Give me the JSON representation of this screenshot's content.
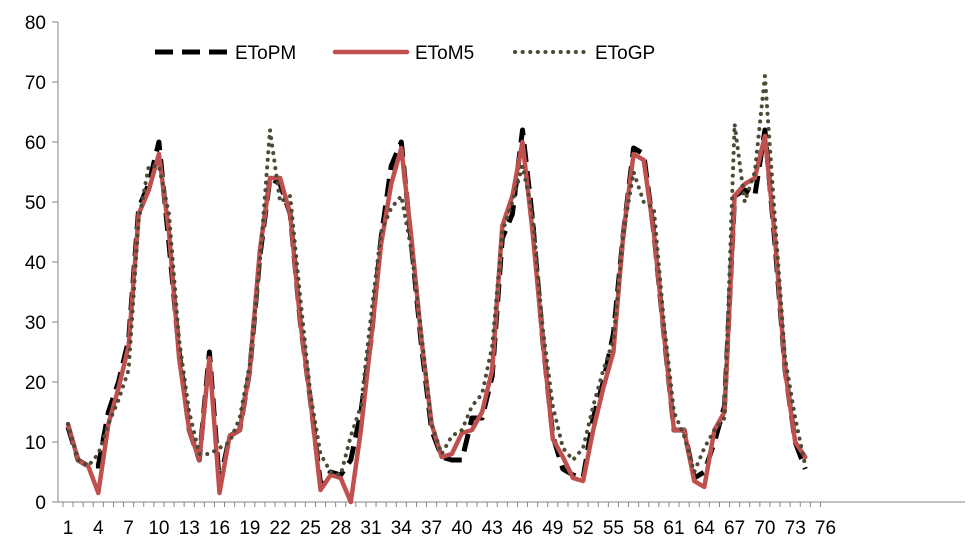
{
  "chart_data": {
    "type": "line",
    "title": "",
    "xlabel": "",
    "ylabel": "",
    "x": [
      1,
      2,
      3,
      4,
      5,
      6,
      7,
      8,
      9,
      10,
      11,
      12,
      13,
      14,
      15,
      16,
      17,
      18,
      19,
      20,
      21,
      22,
      23,
      24,
      25,
      26,
      27,
      28,
      29,
      30,
      31,
      32,
      33,
      34,
      35,
      36,
      37,
      38,
      39,
      40,
      41,
      42,
      43,
      44,
      45,
      46,
      47,
      48,
      49,
      50,
      51,
      52,
      53,
      54,
      55,
      56,
      57,
      58,
      59,
      60,
      61,
      62,
      63,
      64,
      65,
      66,
      67,
      68,
      69,
      70,
      71,
      72,
      73,
      74
    ],
    "x_tick_labels": [
      "1",
      "4",
      "7",
      "10",
      "13",
      "16",
      "19",
      "22",
      "25",
      "28",
      "31",
      "34",
      "37",
      "40",
      "43",
      "46",
      "49",
      "52",
      "55",
      "58",
      "61",
      "64",
      "67",
      "70",
      "73",
      "76"
    ],
    "xlim": [
      1,
      76
    ],
    "ylim": [
      0,
      80
    ],
    "y_ticks": [
      0,
      10,
      20,
      30,
      40,
      50,
      60,
      70,
      80
    ],
    "legend_position": "top-left",
    "grid": false,
    "series": [
      {
        "name": "EToPM",
        "style": "dashed",
        "color": "#000000",
        "values": [
          12.5,
          7,
          6,
          6,
          15,
          20,
          27,
          49,
          53,
          60,
          43,
          25,
          12,
          7,
          25,
          3,
          11,
          12,
          22,
          41,
          54,
          53,
          48,
          30,
          17,
          3,
          5,
          4.5,
          7,
          15,
          27,
          44,
          56,
          60,
          43,
          26,
          12,
          7.5,
          7,
          7,
          14,
          14,
          21,
          44,
          48,
          62,
          47,
          27,
          11,
          5.5,
          4.5,
          4,
          14,
          20,
          28,
          45,
          59,
          58,
          45,
          28,
          12,
          12,
          4,
          5,
          10,
          16,
          51,
          52,
          51,
          62,
          43,
          22,
          10,
          5.5
        ]
      },
      {
        "name": "EToM5",
        "style": "solid",
        "color": "#c0504d",
        "values": [
          13,
          7,
          6,
          1.5,
          13,
          19,
          26,
          48,
          52,
          58,
          45,
          24,
          12,
          7,
          24,
          1.5,
          11,
          12,
          22,
          42,
          54,
          54,
          48,
          30,
          17,
          2,
          4.5,
          4,
          0,
          12,
          27,
          43,
          53,
          59,
          44,
          27,
          13,
          7.5,
          8,
          11.5,
          12,
          15,
          22,
          46,
          51,
          60,
          45,
          27,
          10.5,
          7.5,
          4,
          3.5,
          12,
          19,
          25,
          45,
          58,
          57,
          45,
          28,
          12,
          12,
          3.5,
          2.5,
          12,
          15,
          51,
          53,
          54,
          61,
          44,
          22,
          10,
          7.5
        ]
      },
      {
        "name": "EToGP",
        "style": "dotted",
        "color": "#4f4a36",
        "values": [
          13,
          7,
          6,
          8,
          13,
          17,
          22,
          47,
          56,
          56,
          48,
          27,
          15,
          8,
          8,
          9,
          10,
          14,
          23,
          40,
          62,
          50,
          51,
          34,
          18,
          8,
          5,
          4.5,
          11,
          16,
          31,
          45,
          49,
          51,
          42,
          28,
          13,
          8,
          11,
          12,
          16,
          18,
          26,
          45,
          50,
          56,
          48,
          29,
          16,
          9,
          7,
          9,
          16,
          22,
          27,
          45,
          55,
          50,
          49,
          30,
          15,
          11,
          5,
          9,
          12,
          14,
          63,
          50,
          55,
          71,
          47,
          24,
          14,
          6
        ]
      }
    ]
  }
}
